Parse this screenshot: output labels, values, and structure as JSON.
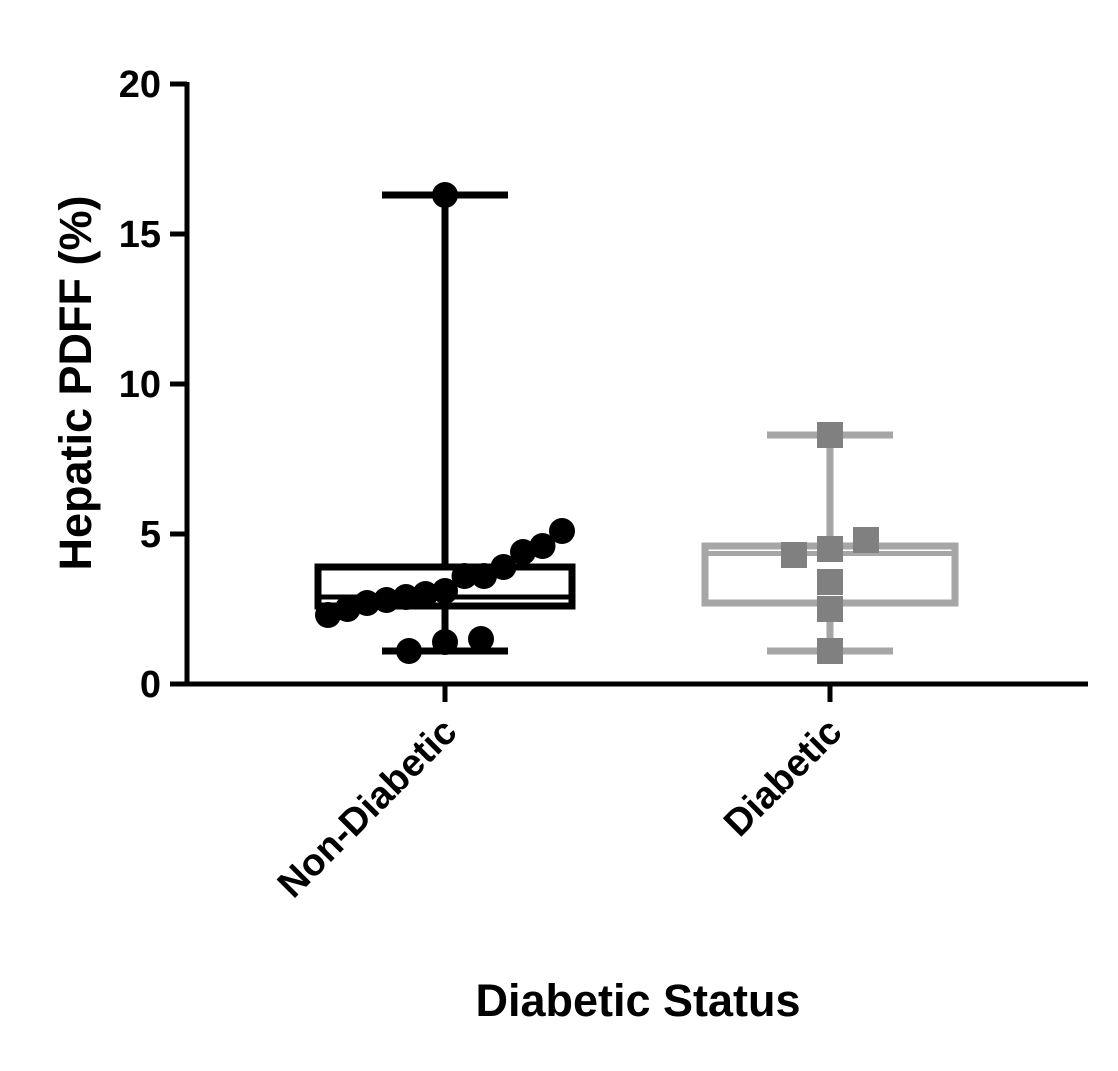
{
  "chart_data": {
    "type": "box",
    "title": "",
    "xlabel": "Diabetic Status",
    "ylabel": "Hepatic PDFF  (%)",
    "ylim": [
      0,
      20
    ],
    "yticks": [
      "0",
      "5",
      "10",
      "15",
      "20"
    ],
    "categories": [
      "Non-Diabetic",
      "Diabetic"
    ],
    "series": [
      {
        "name": "Non-Diabetic",
        "color": "#000000",
        "marker": "circle",
        "box": {
          "min": 1.1,
          "q1": 2.6,
          "median": 2.9,
          "q3": 3.9,
          "max": 16.3
        },
        "points": [
          16.3,
          5.1,
          4.6,
          4.4,
          3.9,
          3.6,
          3.6,
          3.1,
          3.0,
          2.9,
          2.8,
          2.7,
          2.5,
          2.3,
          1.5,
          1.4,
          1.1
        ]
      },
      {
        "name": "Diabetic",
        "color": "#a6a6a6",
        "point_color": "#808080",
        "marker": "square",
        "box": {
          "min": 1.1,
          "q1": 2.7,
          "median": 4.35,
          "q3": 4.6,
          "max": 8.3
        },
        "points": [
          8.3,
          4.8,
          4.5,
          4.3,
          3.4,
          2.5,
          1.1
        ]
      }
    ]
  }
}
